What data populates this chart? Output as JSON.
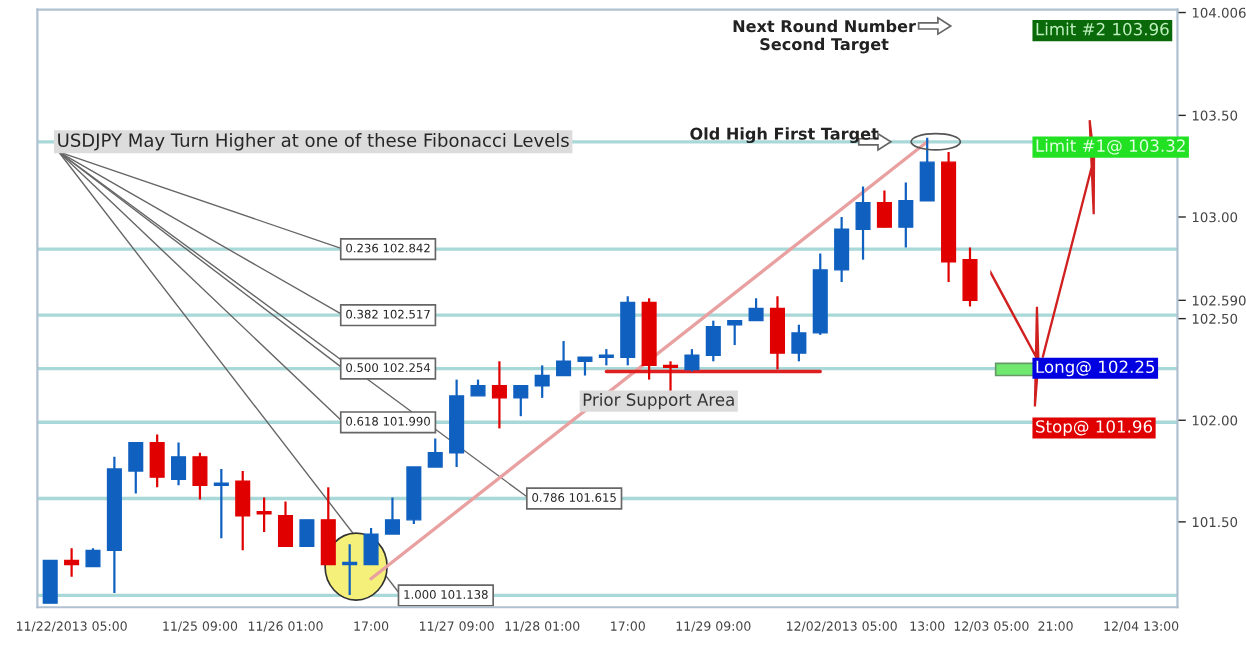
{
  "chart_data": {
    "type": "candlestick",
    "categories": [
      null,
      "11/22/2013 05:00",
      null,
      null,
      null,
      null,
      null,
      "11/25 09:00",
      null,
      null,
      null,
      "11/26 01:00",
      null,
      null,
      null,
      "17:00",
      null,
      null,
      null,
      "11/27 09:00",
      null,
      null,
      null,
      "11/28 01:00",
      null,
      null,
      null,
      "17:00",
      null,
      null,
      null,
      "11/29 09:00",
      null,
      null,
      null,
      null,
      null,
      "12/02/2013 05:00",
      null,
      null,
      null,
      "13:00",
      null,
      null,
      "12/03 05:00",
      null,
      null,
      "21:00",
      null,
      null,
      null,
      "12/04 13:00",
      null
    ],
    "ohlc": [
      [
        101.1,
        101.31,
        101.1,
        101.31
      ],
      [
        101.31,
        101.37,
        101.23,
        101.29
      ],
      [
        101.28,
        101.37,
        101.28,
        101.36
      ],
      [
        101.36,
        101.82,
        101.15,
        101.76
      ],
      [
        101.75,
        101.89,
        101.64,
        101.89
      ],
      [
        101.89,
        101.93,
        101.67,
        101.72
      ],
      [
        101.71,
        101.89,
        101.68,
        101.82
      ],
      [
        101.82,
        101.84,
        101.61,
        101.68
      ],
      [
        101.68,
        101.76,
        101.42,
        101.69
      ],
      [
        101.7,
        101.75,
        101.36,
        101.53
      ],
      [
        101.55,
        101.62,
        101.45,
        101.54
      ],
      [
        101.53,
        101.6,
        101.38,
        101.38
      ],
      [
        101.38,
        101.51,
        101.38,
        101.51
      ],
      [
        101.51,
        101.67,
        101.29,
        101.29
      ],
      [
        101.29,
        101.39,
        101.14,
        101.3
      ],
      [
        101.29,
        101.47,
        101.29,
        101.44
      ],
      [
        101.44,
        101.62,
        101.44,
        101.51
      ],
      [
        101.51,
        101.77,
        101.49,
        101.77
      ],
      [
        101.77,
        101.91,
        101.77,
        101.84
      ],
      [
        101.84,
        102.2,
        101.77,
        102.12
      ],
      [
        102.12,
        102.2,
        102.12,
        102.17
      ],
      [
        102.17,
        102.29,
        101.96,
        102.11
      ],
      [
        102.11,
        102.17,
        102.02,
        102.17
      ],
      [
        102.17,
        102.27,
        102.11,
        102.22
      ],
      [
        102.22,
        102.39,
        102.22,
        102.29
      ],
      [
        102.29,
        102.31,
        102.22,
        102.31
      ],
      [
        102.31,
        102.35,
        102.27,
        102.32
      ],
      [
        102.31,
        102.61,
        102.27,
        102.58
      ],
      [
        102.58,
        102.6,
        102.2,
        102.27
      ],
      [
        102.27,
        102.29,
        102.13,
        102.26
      ],
      [
        102.25,
        102.35,
        102.24,
        102.32
      ],
      [
        102.32,
        102.49,
        102.29,
        102.46
      ],
      [
        102.47,
        102.49,
        102.37,
        102.49
      ],
      [
        102.49,
        102.6,
        102.49,
        102.55
      ],
      [
        102.55,
        102.61,
        102.25,
        102.33
      ],
      [
        102.33,
        102.47,
        102.29,
        102.43
      ],
      [
        102.43,
        102.82,
        102.42,
        102.74
      ],
      [
        102.74,
        103.0,
        102.68,
        102.94
      ],
      [
        102.94,
        103.15,
        102.79,
        103.07
      ],
      [
        103.07,
        103.13,
        102.95,
        102.95
      ],
      [
        102.95,
        103.17,
        102.85,
        103.08
      ],
      [
        103.08,
        103.39,
        103.08,
        103.27
      ],
      [
        103.27,
        103.32,
        102.68,
        102.78
      ],
      [
        102.79,
        102.85,
        102.56,
        102.59
      ],
      null,
      null,
      null,
      null,
      null,
      null,
      null,
      null,
      null
    ],
    "series": [
      {
        "type": "line",
        "values": [
          null,
          null,
          null,
          null,
          null,
          null,
          null,
          null,
          null,
          null,
          null,
          null,
          null,
          null,
          null,
          101.22,
          null,
          null,
          null,
          null,
          null,
          null,
          null,
          null,
          null,
          null,
          null,
          null,
          null,
          null,
          null,
          null,
          null,
          null,
          null,
          null,
          null,
          null,
          null,
          null,
          null,
          103.37,
          null,
          null,
          null,
          null,
          null,
          null,
          null,
          null,
          null,
          null,
          null
        ],
        "color": "#e8a0a0"
      },
      {
        "type": "line",
        "values": [
          null,
          null,
          null,
          null,
          null,
          null,
          null,
          null,
          null,
          null,
          null,
          null,
          null,
          null,
          null,
          null,
          null,
          null,
          null,
          null,
          null,
          null,
          null,
          null,
          null,
          null,
          102.24,
          null,
          null,
          null,
          null,
          null,
          null,
          null,
          null,
          null,
          102.24,
          null,
          null,
          null,
          null,
          null,
          null,
          null,
          null,
          null,
          null,
          null,
          null,
          null,
          null,
          null,
          null
        ],
        "color": "#e02020"
      }
    ],
    "ylim": [
      101.08,
      104.02
    ],
    "yticks": [
      {
        "value": 101.5,
        "label": "101.50"
      },
      {
        "value": 102,
        "label": "102.00"
      },
      {
        "value": 102.5,
        "label": "102.50"
      },
      {
        "value": 102.59,
        "label": "102.590"
      },
      {
        "value": 103,
        "label": "103.00"
      },
      {
        "value": 103.5,
        "label": "103.50"
      },
      {
        "value": 104.006,
        "label": "104.006"
      }
    ],
    "ref_lines": [
      {
        "axis": "y",
        "value": 103.37,
        "label": "USDJPY May Turn Higher at one of these Fibonacci Levels",
        "color": "#a8d8d8"
      },
      {
        "axis": "y",
        "value": 102.842,
        "label": "0.236 102.842",
        "color": "#a8d8d8"
      },
      {
        "axis": "y",
        "value": 102.517,
        "label": "0.382 102.517",
        "color": "#a8d8d8"
      },
      {
        "axis": "y",
        "value": 102.254,
        "label": "0.500 102.254",
        "color": "#a8d8d8"
      },
      {
        "axis": "y",
        "value": 101.99,
        "label": "0.618 101.990",
        "color": "#a8d8d8"
      },
      {
        "axis": "y",
        "value": 101.615,
        "label": "0.786 101.615",
        "color": "#a8d8d8"
      },
      {
        "axis": "y",
        "value": 101.138,
        "label": "1.000 101.138",
        "color": "#a8d8d8"
      }
    ],
    "annotations": [
      "Limit #2 103.96",
      "Limit #1@ 103.32",
      "Long@ 102.25",
      "Stop@ 101.96",
      "Next Round Number\nSecond Target",
      "Old High First Target",
      "Prior Support Area"
    ],
    "grid": false,
    "legend": false
  }
}
